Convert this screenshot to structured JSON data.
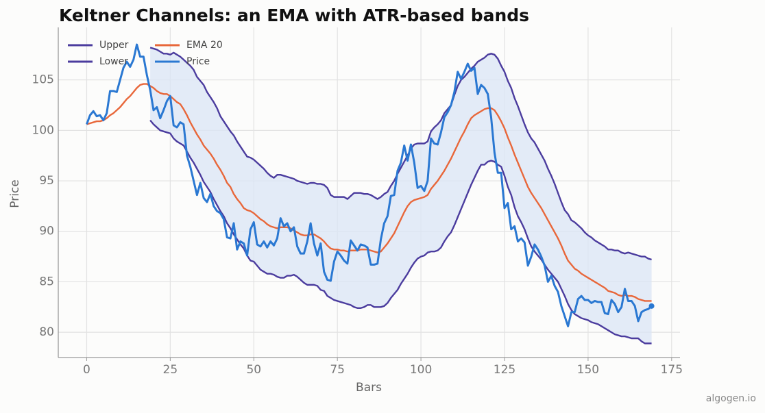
{
  "chart_data": {
    "type": "line",
    "title": "Keltner Channels: an EMA with ATR-based bands",
    "x_label": "Bars",
    "y_label": "Price",
    "watermark": "algogen.io",
    "xlim": [
      -8.5,
      177.5
    ],
    "ylim": [
      77.5,
      110.2
    ],
    "xticks": [
      0,
      25,
      50,
      75,
      100,
      125,
      150,
      175
    ],
    "yticks": [
      80,
      85,
      90,
      95,
      100,
      105
    ],
    "grid": true,
    "legend": "upper left",
    "band_fill": "#dbe6f6",
    "x": [
      0,
      1,
      2,
      3,
      4,
      5,
      6,
      7,
      8,
      9,
      10,
      11,
      12,
      13,
      14,
      15,
      16,
      17,
      18,
      19,
      20,
      21,
      22,
      23,
      24,
      25,
      26,
      27,
      28,
      29,
      30,
      31,
      32,
      33,
      34,
      35,
      36,
      37,
      38,
      39,
      40,
      41,
      42,
      43,
      44,
      45,
      46,
      47,
      48,
      49,
      50,
      51,
      52,
      53,
      54,
      55,
      56,
      57,
      58,
      59,
      60,
      61,
      62,
      63,
      64,
      65,
      66,
      67,
      68,
      69,
      70,
      71,
      72,
      73,
      74,
      75,
      76,
      77,
      78,
      79,
      80,
      81,
      82,
      83,
      84,
      85,
      86,
      87,
      88,
      89,
      90,
      91,
      92,
      93,
      94,
      95,
      96,
      97,
      98,
      99,
      100,
      101,
      102,
      103,
      104,
      105,
      106,
      107,
      108,
      109,
      110,
      111,
      112,
      113,
      114,
      115,
      116,
      117,
      118,
      119,
      120,
      121,
      122,
      123,
      124,
      125,
      126,
      127,
      128,
      129,
      130,
      131,
      132,
      133,
      134,
      135,
      136,
      137,
      138,
      139,
      140,
      141,
      142,
      143,
      144,
      145,
      146,
      147,
      148,
      149,
      150,
      151,
      152,
      153,
      154,
      155,
      156,
      157,
      158,
      159,
      160,
      161,
      162,
      163,
      164,
      165,
      166,
      167,
      168,
      169
    ],
    "series": [
      {
        "name": "Upper",
        "color": "#4b3c9e",
        "values": [
          null,
          null,
          null,
          null,
          null,
          null,
          null,
          null,
          null,
          null,
          null,
          null,
          null,
          null,
          null,
          null,
          null,
          null,
          null,
          108.2,
          108.1,
          108.0,
          107.8,
          107.6,
          107.6,
          107.5,
          107.7,
          107.5,
          107.3,
          107.0,
          106.7,
          106.4,
          106.0,
          105.3,
          104.9,
          104.5,
          103.8,
          103.3,
          102.8,
          102.2,
          101.4,
          100.9,
          100.4,
          99.9,
          99.5,
          98.9,
          98.4,
          97.9,
          97.4,
          97.3,
          97.1,
          96.8,
          96.5,
          96.2,
          95.8,
          95.5,
          95.3,
          95.6,
          95.6,
          95.5,
          95.4,
          95.3,
          95.2,
          95.0,
          94.9,
          94.8,
          94.7,
          94.8,
          94.8,
          94.7,
          94.7,
          94.6,
          94.3,
          93.6,
          93.4,
          93.4,
          93.4,
          93.4,
          93.2,
          93.5,
          93.8,
          93.8,
          93.8,
          93.7,
          93.7,
          93.6,
          93.4,
          93.2,
          93.4,
          93.7,
          93.9,
          94.5,
          95.0,
          95.7,
          96.3,
          96.9,
          97.5,
          98.2,
          98.6,
          98.7,
          98.7,
          98.7,
          98.9,
          99.9,
          100.3,
          100.6,
          101.0,
          101.7,
          102.1,
          102.5,
          103.5,
          104.4,
          105.0,
          105.3,
          105.7,
          106.1,
          106.4,
          106.8,
          107.0,
          107.2,
          107.5,
          107.6,
          107.5,
          107.1,
          106.4,
          105.8,
          104.9,
          104.2,
          103.2,
          102.4,
          101.5,
          100.6,
          99.8,
          99.2,
          98.8,
          98.2,
          97.6,
          97.0,
          96.2,
          95.5,
          94.7,
          93.8,
          92.9,
          92.1,
          91.7,
          91.1,
          90.9,
          90.6,
          90.3,
          89.9,
          89.6,
          89.4,
          89.1,
          88.9,
          88.7,
          88.5,
          88.2,
          88.2,
          88.1,
          88.1,
          87.9,
          87.8,
          87.9,
          87.8,
          87.7,
          87.6,
          87.5,
          87.5,
          87.3,
          87.2
        ]
      },
      {
        "name": "Lower",
        "color": "#4b3c9e",
        "values": [
          null,
          null,
          null,
          null,
          null,
          null,
          null,
          null,
          null,
          null,
          null,
          null,
          null,
          null,
          null,
          null,
          null,
          null,
          null,
          101.0,
          100.6,
          100.3,
          100.0,
          99.9,
          99.8,
          99.7,
          99.2,
          98.9,
          98.7,
          98.5,
          97.9,
          97.3,
          96.8,
          96.2,
          95.6,
          94.9,
          94.4,
          93.9,
          93.2,
          92.6,
          92.0,
          91.5,
          90.8,
          90.3,
          89.7,
          89.2,
          88.7,
          88.3,
          87.6,
          87.1,
          87.0,
          86.6,
          86.2,
          86.0,
          85.8,
          85.8,
          85.7,
          85.5,
          85.4,
          85.4,
          85.6,
          85.6,
          85.7,
          85.5,
          85.2,
          84.9,
          84.7,
          84.7,
          84.7,
          84.6,
          84.2,
          84.1,
          83.6,
          83.4,
          83.2,
          83.1,
          83.0,
          82.9,
          82.8,
          82.7,
          82.5,
          82.4,
          82.4,
          82.5,
          82.7,
          82.7,
          82.5,
          82.5,
          82.5,
          82.6,
          82.9,
          83.4,
          83.8,
          84.2,
          84.8,
          85.3,
          85.8,
          86.4,
          86.9,
          87.3,
          87.5,
          87.6,
          87.9,
          88.0,
          88.0,
          88.1,
          88.4,
          89.0,
          89.5,
          89.9,
          90.6,
          91.4,
          92.2,
          93.0,
          93.8,
          94.6,
          95.3,
          96.0,
          96.6,
          96.6,
          96.9,
          97.0,
          96.9,
          96.6,
          96.4,
          95.5,
          94.4,
          93.6,
          92.4,
          91.5,
          90.9,
          90.2,
          89.3,
          88.5,
          88.0,
          87.6,
          87.2,
          86.7,
          86.2,
          85.8,
          85.4,
          85.0,
          84.3,
          83.6,
          82.8,
          82.2,
          81.8,
          81.6,
          81.4,
          81.3,
          81.2,
          81.0,
          80.9,
          80.8,
          80.6,
          80.4,
          80.2,
          80.0,
          79.8,
          79.7,
          79.6,
          79.6,
          79.5,
          79.4,
          79.4,
          79.4,
          79.1,
          78.9,
          78.9,
          78.9
        ]
      },
      {
        "name": "EMA 20",
        "color": "#e8673a",
        "values": [
          100.6,
          100.7,
          100.8,
          100.9,
          100.9,
          101.0,
          101.2,
          101.5,
          101.7,
          102.0,
          102.3,
          102.7,
          103.1,
          103.4,
          103.8,
          104.2,
          104.5,
          104.6,
          104.6,
          104.4,
          104.2,
          103.9,
          103.7,
          103.6,
          103.6,
          103.4,
          103.1,
          102.8,
          102.6,
          102.1,
          101.5,
          100.8,
          100.2,
          99.6,
          99.1,
          98.5,
          98.1,
          97.7,
          97.2,
          96.6,
          96.1,
          95.5,
          94.8,
          94.4,
          93.7,
          93.2,
          92.8,
          92.3,
          92.1,
          92.0,
          91.8,
          91.5,
          91.2,
          91.0,
          90.7,
          90.5,
          90.4,
          90.3,
          90.4,
          90.4,
          90.4,
          90.3,
          90.1,
          89.9,
          89.7,
          89.6,
          89.6,
          89.7,
          89.7,
          89.5,
          89.3,
          89.0,
          88.6,
          88.3,
          88.2,
          88.2,
          88.1,
          88.1,
          88.0,
          88.1,
          88.1,
          88.1,
          88.2,
          88.2,
          88.2,
          88.1,
          88.0,
          87.9,
          88.0,
          88.4,
          88.8,
          89.3,
          89.8,
          90.5,
          91.2,
          91.9,
          92.5,
          92.9,
          93.1,
          93.2,
          93.3,
          93.4,
          93.6,
          94.2,
          94.6,
          95.0,
          95.5,
          96.0,
          96.6,
          97.2,
          97.9,
          98.6,
          99.3,
          99.9,
          100.6,
          101.2,
          101.5,
          101.7,
          101.9,
          102.1,
          102.2,
          102.2,
          102.0,
          101.5,
          100.9,
          100.2,
          99.3,
          98.5,
          97.6,
          96.8,
          96.0,
          95.2,
          94.4,
          93.8,
          93.3,
          92.8,
          92.3,
          91.7,
          91.1,
          90.5,
          89.9,
          89.3,
          88.6,
          87.8,
          87.1,
          86.7,
          86.3,
          86.1,
          85.8,
          85.6,
          85.4,
          85.2,
          85.0,
          84.8,
          84.6,
          84.4,
          84.1,
          84.0,
          83.9,
          83.7,
          83.6,
          83.7,
          83.6,
          83.6,
          83.5,
          83.3,
          83.2,
          83.1,
          83.1,
          83.1
        ]
      },
      {
        "name": "Price",
        "color": "#2a78d2",
        "values": [
          100.6,
          101.5,
          101.9,
          101.4,
          101.5,
          101.0,
          101.7,
          103.9,
          103.9,
          103.8,
          105.0,
          106.2,
          106.8,
          106.3,
          107.0,
          108.5,
          107.3,
          107.3,
          105.5,
          104.0,
          102.0,
          102.3,
          101.2,
          102.0,
          102.9,
          103.4,
          100.5,
          100.3,
          100.8,
          100.6,
          97.5,
          96.4,
          95.0,
          93.6,
          94.8,
          93.3,
          92.9,
          93.7,
          92.5,
          92.0,
          91.8,
          91.2,
          89.4,
          89.3,
          90.8,
          88.2,
          89.0,
          88.8,
          87.6,
          90.2,
          90.9,
          88.7,
          88.5,
          89.0,
          88.4,
          89.0,
          88.6,
          89.3,
          91.3,
          90.5,
          90.8,
          90.0,
          90.4,
          88.5,
          87.8,
          87.8,
          89.0,
          90.8,
          88.8,
          87.6,
          88.8,
          86.0,
          85.2,
          85.1,
          87.0,
          88.0,
          87.6,
          87.1,
          86.8,
          89.1,
          88.6,
          88.1,
          88.7,
          88.6,
          88.4,
          86.7,
          86.7,
          86.8,
          89.2,
          90.8,
          91.5,
          93.5,
          93.6,
          96.0,
          96.8,
          98.5,
          97.0,
          98.6,
          96.8,
          94.3,
          94.5,
          94.0,
          95.0,
          99.2,
          98.7,
          98.6,
          99.8,
          101.3,
          101.8,
          102.5,
          103.8,
          105.8,
          105.1,
          105.8,
          106.6,
          105.9,
          106.2,
          103.6,
          104.5,
          104.2,
          103.6,
          101.3,
          97.8,
          95.8,
          95.8,
          92.3,
          92.8,
          90.2,
          90.5,
          89.0,
          89.3,
          88.9,
          86.6,
          87.5,
          88.7,
          88.2,
          87.5,
          86.6,
          85.0,
          85.6,
          84.6,
          84.0,
          82.6,
          81.6,
          80.6,
          82.0,
          82.0,
          83.3,
          83.6,
          83.2,
          83.2,
          82.9,
          83.1,
          83.0,
          83.0,
          81.9,
          81.8,
          83.2,
          82.8,
          82.0,
          82.5,
          84.3,
          83.1,
          83.1,
          82.6,
          81.1,
          82.0,
          82.2,
          82.3,
          82.6
        ]
      }
    ]
  }
}
